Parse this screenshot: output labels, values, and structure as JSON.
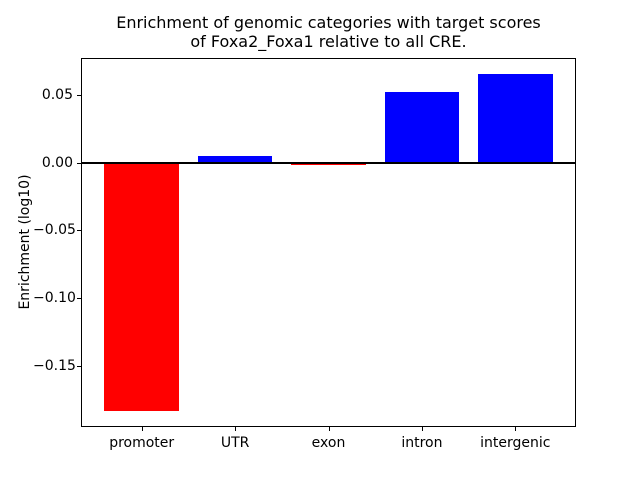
{
  "chart_data": {
    "type": "bar",
    "title": "Enrichment of genomic categories with target scores of Foxa2_Foxa1 relative to all CRE.",
    "title_lines": [
      "Enrichment of genomic categories with target scores",
      "of Foxa2_Foxa1 relative to all CRE."
    ],
    "xlabel": "",
    "ylabel": "Enrichment (log10)",
    "categories": [
      "promoter",
      "UTR",
      "exon",
      "intron",
      "intergenic"
    ],
    "values": [
      -0.183,
      0.005,
      -0.002,
      0.052,
      0.065
    ],
    "bar_colors": [
      "#ff0000",
      "#0000ff",
      "#ff0000",
      "#0000ff",
      "#0000ff"
    ],
    "positive_color": "#0000ff",
    "negative_color": "#ff0000",
    "bar_width": 0.8,
    "ylim": [
      -0.195,
      0.077
    ],
    "xlim": [
      -0.65,
      4.65
    ],
    "yticks": [
      0.05,
      0,
      -0.05,
      -0.1,
      -0.15
    ],
    "ytick_labels": [
      "0.05",
      "0.00",
      "−0.05",
      "−0.10",
      "−0.15"
    ],
    "zero_line": true,
    "zero_line_color": "#000000",
    "axis_color": "#000000",
    "background_color": "#ffffff",
    "grid": false,
    "legend": false
  }
}
